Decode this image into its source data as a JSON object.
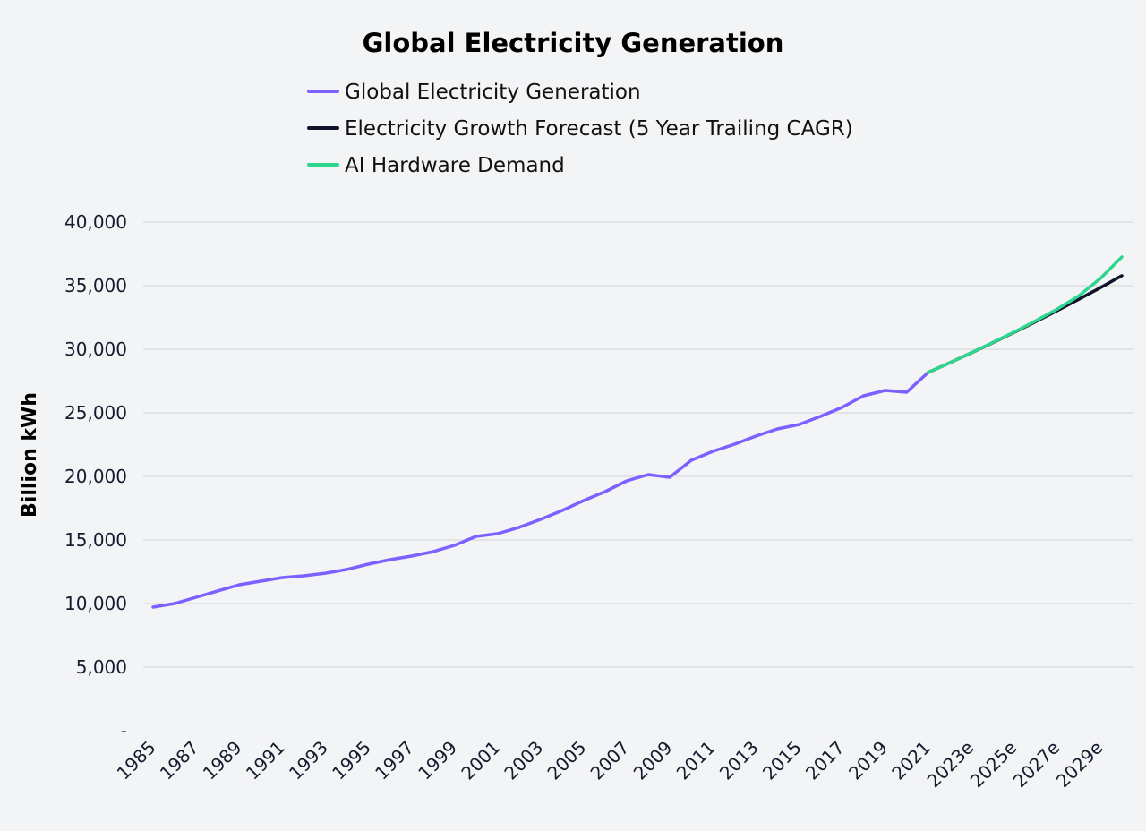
{
  "chart_data": {
    "type": "line",
    "title": "Global Electricity Generation",
    "xlabel": "",
    "ylabel": "Billion kWh",
    "ylim": [
      0,
      40000
    ],
    "yticks": [
      0,
      5000,
      10000,
      15000,
      20000,
      25000,
      30000,
      35000,
      40000
    ],
    "ytick_labels": [
      "-",
      "5,000",
      "10,000",
      "15,000",
      "20,000",
      "25,000",
      "30,000",
      "35,000",
      "40,000"
    ],
    "grid": true,
    "legend_placement": "top-center",
    "x": [
      "1985",
      "1986",
      "1987",
      "1988",
      "1989",
      "1990",
      "1991",
      "1992",
      "1993",
      "1994",
      "1995",
      "1996",
      "1997",
      "1998",
      "1999",
      "2000",
      "2001",
      "2002",
      "2003",
      "2004",
      "2005",
      "2006",
      "2007",
      "2008",
      "2009",
      "2010",
      "2011",
      "2012",
      "2013",
      "2014",
      "2015",
      "2016",
      "2017",
      "2018",
      "2019",
      "2020",
      "2021",
      "2022e",
      "2023e",
      "2024e",
      "2025e",
      "2026e",
      "2027e",
      "2028e",
      "2029e",
      "2030e"
    ],
    "xtick_labels": [
      "1985",
      "1987",
      "1989",
      "1991",
      "1993",
      "1995",
      "1997",
      "1999",
      "2001",
      "2003",
      "2005",
      "2007",
      "2009",
      "2011",
      "2013",
      "2015",
      "2017",
      "2019",
      "2021",
      "2023e",
      "2025e",
      "2027e",
      "2029e"
    ],
    "series": [
      {
        "name": "Global Electricity Generation",
        "color": "#7b61ff",
        "values": [
          9720,
          10000,
          10490,
          10990,
          11480,
          11760,
          12040,
          12180,
          12390,
          12680,
          13100,
          13450,
          13730,
          14080,
          14580,
          15280,
          15490,
          15990,
          16620,
          17320,
          18100,
          18800,
          19650,
          20140,
          19930,
          21270,
          21970,
          22530,
          23170,
          23730,
          24080,
          24720,
          25420,
          26340,
          26760,
          26620,
          28170,
          null,
          null,
          null,
          null,
          null,
          null,
          null,
          null,
          null
        ]
      },
      {
        "name": "Electricity Growth Forecast (5 Year Trailing CAGR)",
        "color": "#12112a",
        "values": [
          null,
          null,
          null,
          null,
          null,
          null,
          null,
          null,
          null,
          null,
          null,
          null,
          null,
          null,
          null,
          null,
          null,
          null,
          null,
          null,
          null,
          null,
          null,
          null,
          null,
          null,
          null,
          null,
          null,
          null,
          null,
          null,
          null,
          null,
          null,
          null,
          28170,
          28930,
          29710,
          30510,
          31330,
          32170,
          33040,
          33930,
          34840,
          35780
        ]
      },
      {
        "name": "AI Hardware Demand",
        "color": "#2fd68f",
        "values": [
          null,
          null,
          null,
          null,
          null,
          null,
          null,
          null,
          null,
          null,
          null,
          null,
          null,
          null,
          null,
          null,
          null,
          null,
          null,
          null,
          null,
          null,
          null,
          null,
          null,
          null,
          null,
          null,
          null,
          null,
          null,
          null,
          null,
          null,
          null,
          null,
          28170,
          28930,
          29720,
          30530,
          31360,
          32230,
          33160,
          34200,
          35560,
          37250
        ]
      }
    ]
  }
}
